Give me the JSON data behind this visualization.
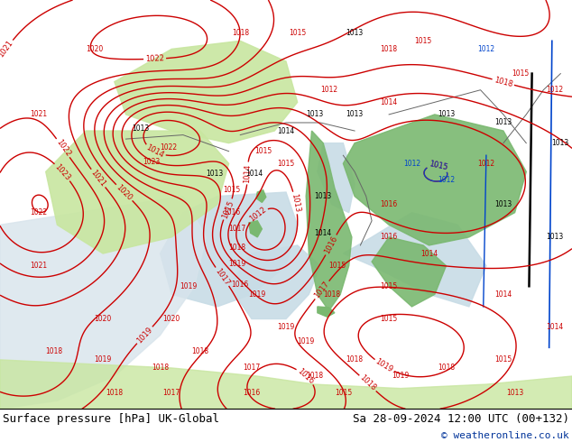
{
  "title_left": "Surface pressure [hPa] UK-Global",
  "title_right": "Sa 28-09-2024 12:00 UTC (00+132)",
  "copyright": "© weatheronline.co.uk",
  "land_color_light": "#c8e6a0",
  "land_color_dark": "#7ab870",
  "sea_color": "#c8dce6",
  "bg_color": "#c8e6a0",
  "contour_color_red": "#cc0000",
  "contour_color_blue": "#0044cc",
  "contour_color_black": "#000000",
  "footer_bg": "#ffffff",
  "footer_fontsize": 9,
  "fig_width": 6.34,
  "fig_height": 4.9
}
